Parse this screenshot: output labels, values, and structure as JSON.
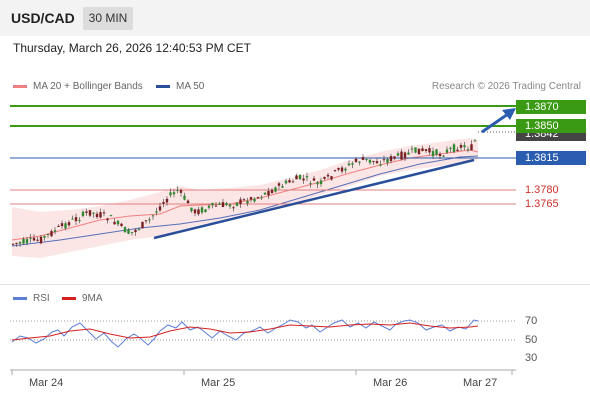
{
  "header": {
    "symbol": "USD/CAD",
    "timeframe": "30 MIN"
  },
  "datetime": "Thursday, March 26, 2026 12:40:53 PM CET",
  "legend": {
    "ma20": "MA 20 + Bollinger Bands",
    "ma50": "MA 50",
    "ma20_color": "#f08080",
    "ma50_color": "#2a4f9a"
  },
  "copyright": "Research © 2026 Trading Central",
  "levels": {
    "resistance_2": "1.3870",
    "resistance_1": "1.3850",
    "current": "1.3842",
    "pivot": "1.3815",
    "support_1": "1.3780",
    "support_2": "1.3765"
  },
  "rsi_panel": {
    "rsi_label": "RSI",
    "ma_label": "9MA",
    "rsi_color": "#5b7fd6",
    "ma_color": "#d62020",
    "ticks": [
      "70",
      "50",
      "30"
    ]
  },
  "x_axis": {
    "dates": [
      "Mar 24",
      "Mar 25",
      "Mar 26",
      "Mar 27"
    ]
  },
  "colors": {
    "resistance": "#3a9a13",
    "pivot": "#2a5db0",
    "support": "#d0302a"
  }
}
